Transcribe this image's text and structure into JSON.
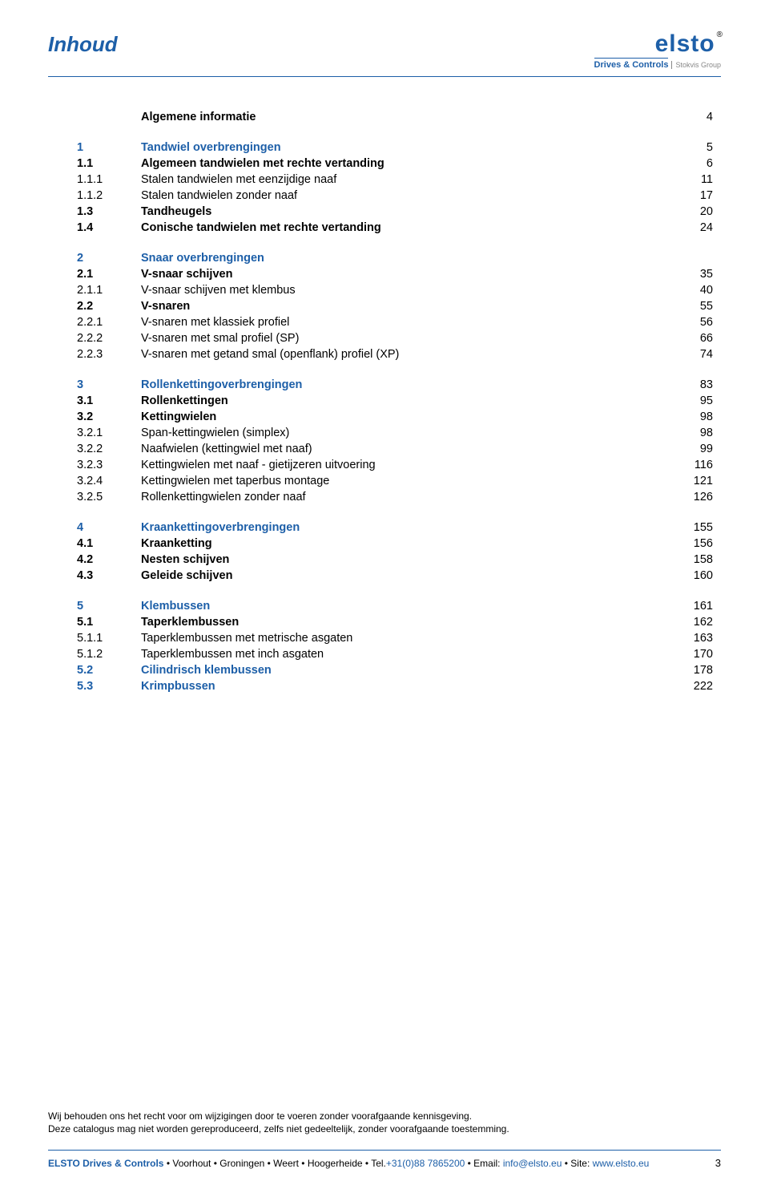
{
  "header": {
    "title": "Inhoud",
    "logo_main": "elsto",
    "logo_r": "®",
    "logo_sub": "Drives & Controls",
    "logo_sub2": "Stokvis Group"
  },
  "toc": [
    {
      "num": "",
      "label": "Algemene informatie",
      "page": "4",
      "bold": true,
      "blue": false,
      "gap_after": true
    },
    {
      "num": "1",
      "label": "Tandwiel overbrengingen",
      "page": "5",
      "bold": true,
      "blue": true
    },
    {
      "num": "1.1",
      "label": "Algemeen tandwielen met rechte vertanding",
      "page": "6",
      "bold": true,
      "blue": false
    },
    {
      "num": "1.1.1",
      "label": "Stalen tandwielen met eenzijdige naaf",
      "page": "11",
      "bold": false,
      "blue": false
    },
    {
      "num": "1.1.2",
      "label": "Stalen tandwielen zonder naaf",
      "page": "17",
      "bold": false,
      "blue": false
    },
    {
      "num": "1.3",
      "label": "Tandheugels",
      "page": "20",
      "bold": true,
      "blue": false
    },
    {
      "num": "1.4",
      "label": "Conische tandwielen met rechte vertanding",
      "page": "24",
      "bold": true,
      "blue": false,
      "gap_after": true
    },
    {
      "num": "2",
      "label": "Snaar overbrengingen",
      "page": "",
      "bold": true,
      "blue": true
    },
    {
      "num": "2.1",
      "label": "V-snaar schijven",
      "page": "35",
      "bold": true,
      "blue": false
    },
    {
      "num": "2.1.1",
      "label": "V-snaar schijven met klembus",
      "page": "40",
      "bold": false,
      "blue": false
    },
    {
      "num": "2.2",
      "label": "V-snaren",
      "page": "55",
      "bold": true,
      "blue": false
    },
    {
      "num": "2.2.1",
      "label": "V-snaren met klassiek profiel",
      "page": "56",
      "bold": false,
      "blue": false
    },
    {
      "num": "2.2.2",
      "label": "V-snaren met smal profiel (SP)",
      "page": "66",
      "bold": false,
      "blue": false
    },
    {
      "num": "2.2.3",
      "label": "V-snaren met getand smal (openflank) profiel (XP)",
      "page": "74",
      "bold": false,
      "blue": false,
      "gap_after": true
    },
    {
      "num": "3",
      "label": "Rollenkettingoverbrengingen",
      "page": "83",
      "bold": true,
      "blue": true
    },
    {
      "num": "3.1",
      "label": "Rollenkettingen",
      "page": "95",
      "bold": true,
      "blue": false
    },
    {
      "num": "3.2",
      "label": "Kettingwielen",
      "page": "98",
      "bold": true,
      "blue": false
    },
    {
      "num": "3.2.1",
      "label": "Span-kettingwielen (simplex)",
      "page": "98",
      "bold": false,
      "blue": false
    },
    {
      "num": "3.2.2",
      "label": "Naafwielen (kettingwiel met naaf)",
      "page": "99",
      "bold": false,
      "blue": false
    },
    {
      "num": "3.2.3",
      "label": "Kettingwielen met naaf - gietijzeren uitvoering",
      "page": "116",
      "bold": false,
      "blue": false
    },
    {
      "num": "3.2.4",
      "label": "Kettingwielen met taperbus montage",
      "page": "121",
      "bold": false,
      "blue": false
    },
    {
      "num": "3.2.5",
      "label": "Rollenkettingwielen zonder naaf",
      "page": "126",
      "bold": false,
      "blue": false,
      "gap_after": true
    },
    {
      "num": "4",
      "label": "Kraankettingoverbrengingen",
      "page": "155",
      "bold": true,
      "blue": true
    },
    {
      "num": "4.1",
      "label": "Kraanketting",
      "page": "156",
      "bold": true,
      "blue": false
    },
    {
      "num": "4.2",
      "label": "Nesten schijven",
      "page": "158",
      "bold": true,
      "blue": false
    },
    {
      "num": "4.3",
      "label": "Geleide schijven",
      "page": "160",
      "bold": true,
      "blue": false,
      "gap_after": true
    },
    {
      "num": "5",
      "label": "Klembussen",
      "page": "161",
      "bold": true,
      "blue": true
    },
    {
      "num": "5.1",
      "label": "Taperklembussen",
      "page": "162",
      "bold": true,
      "blue": false
    },
    {
      "num": "5.1.1",
      "label": "Taperklembussen met metrische asgaten",
      "page": "163",
      "bold": false,
      "blue": false
    },
    {
      "num": "5.1.2",
      "label": "Taperklembussen met inch asgaten",
      "page": "170",
      "bold": false,
      "blue": false
    },
    {
      "num": "5.2",
      "label": "Cilindrisch klembussen",
      "page": "178",
      "bold": true,
      "blue": true
    },
    {
      "num": "5.3",
      "label": "Krimpbussen",
      "page": "222",
      "bold": true,
      "blue": true
    }
  ],
  "disclaimer": {
    "line1": "Wij behouden ons het recht voor om wijzigingen door te voeren zonder voorafgaande kennisgeving.",
    "line2": "Deze catalogus mag niet worden gereproduceerd, zelfs niet gedeeltelijk, zonder voorafgaande toestemming."
  },
  "footer": {
    "company": "ELSTO Drives & Controls",
    "locations": " • Voorhout • Groningen • Weert • Hoogerheide • Tel.",
    "tel": "+31(0)88 7865200",
    "email_prefix": " • Email: ",
    "email": "info@elsto.eu",
    "site_prefix": " • Site: ",
    "site": "www.elsto.eu",
    "page_number": "3"
  }
}
